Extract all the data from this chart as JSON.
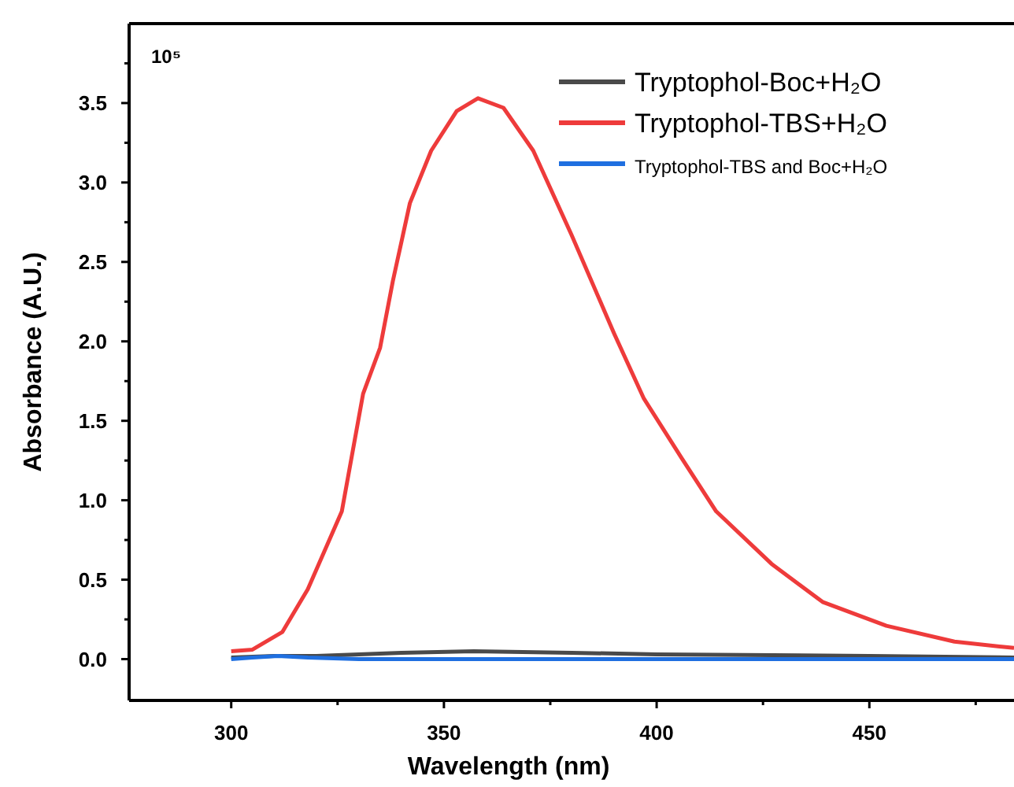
{
  "chart_data": {
    "type": "line",
    "xlabel": "Wavelength (nm)",
    "ylabel": "Absorbance (A.U.)",
    "annotations": [
      "10⁵"
    ],
    "xlim": [
      276,
      484
    ],
    "ylim": [
      -0.26,
      4.0
    ],
    "xticks": [
      300,
      {
        "value": 325,
        "label": null
      },
      350,
      {
        "value": 375,
        "label": null
      },
      400,
      {
        "value": 425,
        "label": null
      },
      450,
      {
        "value": 475,
        "label": null
      }
    ],
    "yticks": [
      {
        "value": 0,
        "label": "0.0"
      },
      {
        "value": 0.25,
        "label": null
      },
      {
        "value": 0.5,
        "label": "0.5"
      },
      {
        "value": 0.75,
        "label": null
      },
      {
        "value": 1,
        "label": "1.0"
      },
      {
        "value": 1.25,
        "label": null
      },
      {
        "value": 1.5,
        "label": "1.5"
      },
      {
        "value": 1.75,
        "label": null
      },
      {
        "value": 2,
        "label": "2.0"
      },
      {
        "value": 2.25,
        "label": null
      },
      {
        "value": 2.5,
        "label": "2.5"
      },
      {
        "value": 2.75,
        "label": null
      },
      {
        "value": 3,
        "label": "3.0"
      },
      {
        "value": 3.25,
        "label": null
      },
      {
        "value": 3.5,
        "label": "3.5"
      },
      {
        "value": 3.75,
        "label": null
      }
    ],
    "legend": "top right",
    "grid": false,
    "marker": "none",
    "line_style": "solid",
    "series": [
      {
        "name": "Tryptophol-Boc+H₂O",
        "color": "#4a4a4a",
        "x": [
          300,
          310,
          320,
          340,
          357,
          380,
          400,
          450,
          484
        ],
        "values": [
          0.01,
          0.02,
          0.02,
          0.04,
          0.05,
          0.04,
          0.03,
          0.02,
          0.01
        ]
      },
      {
        "name": "Tryptophol-TBS+H₂O",
        "color": "#ee3b3b",
        "x": [
          300,
          305,
          312,
          318,
          326,
          331,
          335,
          338,
          342,
          347,
          353,
          358,
          364,
          371,
          380,
          390,
          397,
          406,
          414,
          427,
          439,
          454,
          470,
          484
        ],
        "values": [
          0.05,
          0.06,
          0.17,
          0.44,
          0.93,
          1.67,
          1.96,
          2.38,
          2.87,
          3.2,
          3.45,
          3.53,
          3.47,
          3.2,
          2.67,
          2.05,
          1.64,
          1.26,
          0.93,
          0.6,
          0.36,
          0.21,
          0.11,
          0.07
        ]
      },
      {
        "name": "Tryptophol-TBS and Boc+H₂O",
        "color": "#1f6fe0",
        "x": [
          300,
          305,
          311,
          318,
          330,
          400,
          484
        ],
        "values": [
          0.0,
          0.01,
          0.02,
          0.01,
          0.0,
          0.0,
          0.0
        ]
      }
    ]
  }
}
